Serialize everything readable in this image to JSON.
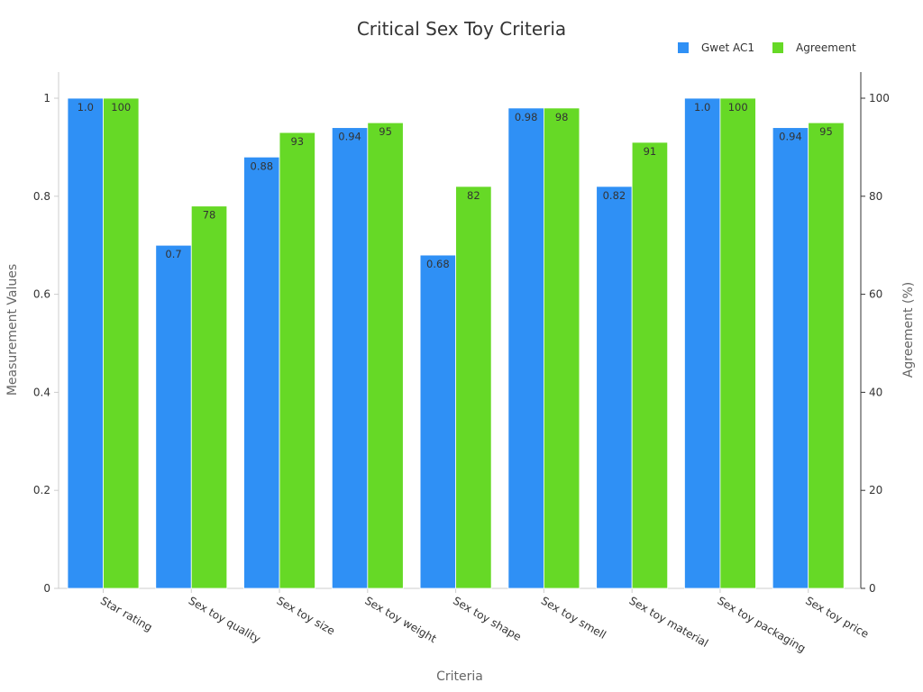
{
  "chart_data": {
    "type": "bar",
    "title": "Critical Sex Toy Criteria",
    "xlabel": "Criteria",
    "ylabel": "Measurement Values",
    "y2label": "Agreement (%)",
    "categories": [
      "Star rating",
      "Sex toy quality",
      "Sex toy size",
      "Sex toy weight",
      "Sex toy shape",
      "Sex toy smell",
      "Sex toy material",
      "Sex toy packaging",
      "Sex toy price"
    ],
    "series": [
      {
        "name": "Gwet AC1",
        "axis": "left",
        "color": "#2f90f5",
        "values": [
          1.0,
          0.7,
          0.88,
          0.94,
          0.68,
          0.98,
          0.82,
          1.0,
          0.94
        ],
        "labels": [
          "1.0",
          "0.7",
          "0.88",
          "0.94",
          "0.68",
          "0.98",
          "0.82",
          "1.0",
          "0.94"
        ]
      },
      {
        "name": "Agreement",
        "axis": "right",
        "color": "#66d926",
        "values": [
          100,
          78,
          93,
          95,
          82,
          98,
          91,
          100,
          95
        ],
        "labels": [
          "100",
          "78",
          "93",
          "95",
          "82",
          "98",
          "91",
          "100",
          "95"
        ]
      }
    ],
    "ylim": [
      0,
      1
    ],
    "y2lim": [
      0,
      100
    ],
    "yticks": [
      "0",
      "0.2",
      "0.4",
      "0.6",
      "0.8",
      "1"
    ],
    "y2ticks": [
      "0",
      "20",
      "40",
      "60",
      "80",
      "100"
    ],
    "legend_position": "top-right",
    "grid": false
  }
}
